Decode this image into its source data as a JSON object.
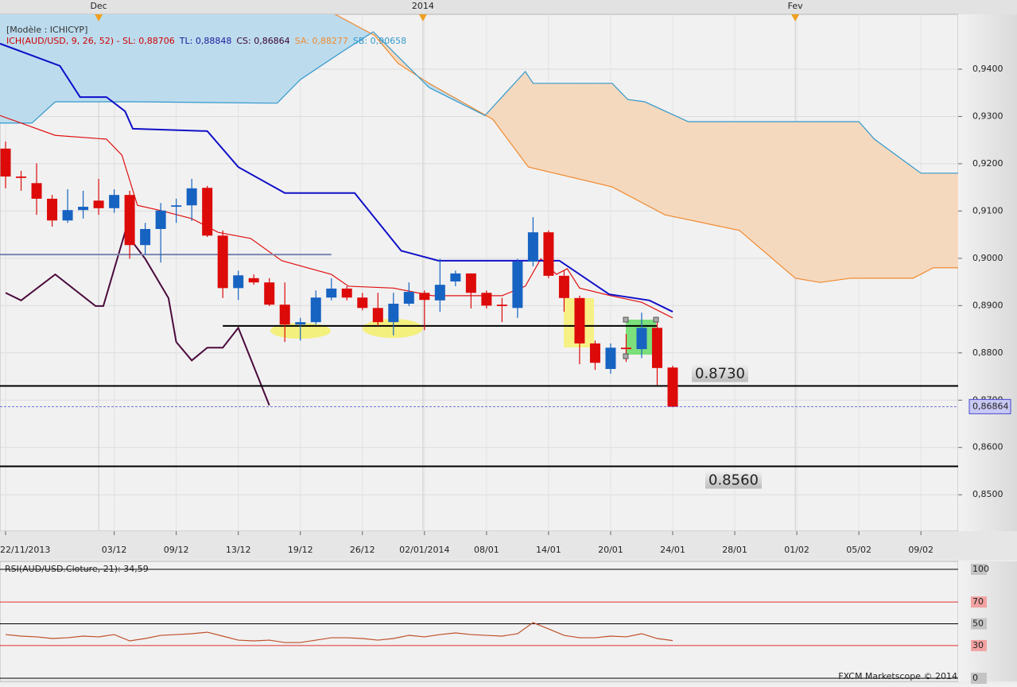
{
  "chart_data": [
    {
      "type": "candlestick",
      "legend_texts": [
        {
          "text": "[Modèle : ICHICYP]",
          "color": "#333333"
        },
        {
          "text": "ICH(AUD/USD, 9, 26, 52) -  SL: 0,88706",
          "color": "#d00000"
        },
        {
          "text": "TL: 0,88848",
          "color": "#1a1a9a"
        },
        {
          "text": "CS: 0,86864",
          "color": "#3a0030"
        },
        {
          "text": "SA: 0,88277",
          "color": "#f08a30"
        },
        {
          "text": "SB: 0,90658",
          "color": "#3399cc"
        }
      ],
      "top_labels": [
        {
          "value": 6,
          "label": "Dec"
        },
        {
          "value": 26.9,
          "label": "2014"
        },
        {
          "value": 50.9,
          "label": "Fev"
        }
      ],
      "x": [
        0,
        1,
        2,
        3,
        4,
        5,
        6,
        7,
        8,
        9,
        10,
        11,
        12,
        13,
        14,
        15,
        16,
        17,
        18,
        19,
        20,
        21,
        22,
        23,
        24,
        25,
        26,
        27,
        28,
        29,
        30,
        31,
        32,
        33,
        34,
        35,
        36,
        37,
        38,
        39,
        40,
        41,
        42,
        43
      ],
      "open": [
        0.9232,
        0.9173,
        0.9159,
        0.9126,
        0.908,
        0.9102,
        0.9122,
        0.9106,
        0.9134,
        0.9028,
        0.9062,
        0.9109,
        0.9112,
        0.9149,
        0.9048,
        0.8937,
        0.8958,
        0.8949,
        0.8902,
        0.886,
        0.8865,
        0.8917,
        0.8936,
        0.8917,
        0.8895,
        0.8865,
        0.8904,
        0.8927,
        0.8911,
        0.8951,
        0.8968,
        0.8927,
        0.8902,
        0.8895,
        0.8993,
        0.9055,
        0.8963,
        0.8916,
        0.882,
        0.8766,
        0.8811,
        0.8808,
        0.8853,
        0.8769
      ],
      "high": [
        0.9247,
        0.9185,
        0.9201,
        0.9134,
        0.9146,
        0.9143,
        0.9168,
        0.9146,
        0.9143,
        0.9075,
        0.9117,
        0.9126,
        0.9168,
        0.9153,
        0.9059,
        0.8974,
        0.8966,
        0.8958,
        0.8949,
        0.8874,
        0.8932,
        0.8958,
        0.8941,
        0.8927,
        0.8927,
        0.8927,
        0.8949,
        0.8932,
        0.8999,
        0.8974,
        0.8968,
        0.8932,
        0.8916,
        0.8999,
        0.9087,
        0.9059,
        0.8974,
        0.8921,
        0.8826,
        0.882,
        0.884,
        0.8885,
        0.8865,
        0.8773
      ],
      "low": [
        0.9148,
        0.9143,
        0.9092,
        0.9067,
        0.9075,
        0.9084,
        0.9092,
        0.9096,
        0.8999,
        0.9008,
        0.8991,
        0.9075,
        0.9079,
        0.9045,
        0.8916,
        0.8912,
        0.8944,
        0.8899,
        0.8823,
        0.8826,
        0.886,
        0.8911,
        0.8911,
        0.889,
        0.8857,
        0.8837,
        0.8899,
        0.8848,
        0.8887,
        0.8941,
        0.8894,
        0.8894,
        0.8865,
        0.8874,
        0.8983,
        0.8958,
        0.8887,
        0.8776,
        0.8764,
        0.8756,
        0.8781,
        0.8789,
        0.8732,
        0.8685
      ],
      "close": [
        0.9173,
        0.917,
        0.9126,
        0.908,
        0.9102,
        0.9109,
        0.9106,
        0.9134,
        0.9028,
        0.9062,
        0.9101,
        0.9112,
        0.9148,
        0.9048,
        0.8937,
        0.8964,
        0.8949,
        0.8902,
        0.886,
        0.8865,
        0.8917,
        0.8936,
        0.8917,
        0.8895,
        0.8865,
        0.8904,
        0.8929,
        0.8912,
        0.8944,
        0.8968,
        0.8927,
        0.89,
        0.8899,
        0.8993,
        0.9055,
        0.8963,
        0.8916,
        0.882,
        0.8779,
        0.8811,
        0.8808,
        0.8853,
        0.8768,
        0.8686
      ],
      "up_color": "#1763c2",
      "down_color": "#dd0a0a",
      "series": [
        {
          "color": "#e01010",
          "x": [
            -0.36,
            3.2,
            6.5,
            7.5,
            8.5,
            10,
            12,
            13.7,
            15.8,
            17.8,
            21,
            22.1,
            25,
            27.5,
            32,
            33.5,
            34.5,
            35.5,
            36.2,
            37,
            39,
            41,
            43
          ],
          "values": [
            0.9302,
            0.926,
            0.9252,
            0.9218,
            0.9112,
            0.9101,
            0.9084,
            0.9055,
            0.9042,
            0.8995,
            0.8966,
            0.8941,
            0.8937,
            0.8921,
            0.8921,
            0.8941,
            0.8999,
            0.8966,
            0.8978,
            0.8937,
            0.8921,
            0.8907,
            0.8874
          ]
        },
        {
          "color": "#1010c8",
          "x": [
            -0.36,
            3.5,
            4.8,
            6.5,
            7.7,
            8.2,
            13,
            15,
            18,
            22.5,
            25.5,
            27.9,
            35.7,
            38.9,
            41.5,
            43
          ],
          "values": [
            0.9454,
            0.9407,
            0.9341,
            0.9341,
            0.9311,
            0.9274,
            0.9269,
            0.9193,
            0.9138,
            0.9138,
            0.9016,
            0.8995,
            0.8995,
            0.8924,
            0.8911,
            0.8887
          ]
        },
        {
          "color": "#4a0a3c",
          "x": [
            0,
            1,
            3.2,
            5.8,
            6.3,
            7.7,
            9,
            10.5,
            11,
            12,
            13,
            14,
            15,
            17
          ],
          "values": [
            0.8927,
            0.8911,
            0.8966,
            0.8899,
            0.8899,
            0.9055,
            0.8999,
            0.8916,
            0.8823,
            0.8784,
            0.8811,
            0.8811,
            0.8853,
            0.8689
          ]
        },
        {
          "color": "#f08a30",
          "x": [
            -0.36,
            20,
            23.8,
            25.3,
            27.3,
            31.4,
            33.7,
            39.1,
            42.5,
            47.3,
            50.9,
            52.5,
            54.5,
            58.5,
            59.8,
            61.4
          ],
          "values": [
            0.9538,
            0.9538,
            0.9471,
            0.9412,
            0.937,
            0.9294,
            0.9193,
            0.9151,
            0.9092,
            0.9059,
            0.8958,
            0.8949,
            0.8958,
            0.8958,
            0.898,
            0.898
          ]
        },
        {
          "color": "#3399cc",
          "x": [
            -0.36,
            1.7,
            3.2,
            8.5,
            17.5,
            19,
            21.7,
            23.7,
            27.3,
            30.9,
            33.5,
            34,
            39.1,
            40.1,
            41.2,
            44,
            55,
            56,
            59,
            61.4
          ],
          "values": [
            0.9286,
            0.9286,
            0.9331,
            0.9331,
            0.9328,
            0.9378,
            0.9437,
            0.9479,
            0.9361,
            0.9302,
            0.9395,
            0.937,
            0.937,
            0.9336,
            0.9331,
            0.9289,
            0.9289,
            0.9252,
            0.918,
            0.918
          ]
        }
      ],
      "cloud_colors": [
        "#bcdcee",
        "#f5d9bf"
      ],
      "levels": [
        {
          "value": 0.873,
          "label": "0.8730",
          "color": "#000000"
        },
        {
          "value": 0.856,
          "label": "0.8560",
          "color": "#000000"
        },
        {
          "value": 0.8857,
          "x": [
            14,
            42
          ],
          "color": "#000000"
        },
        {
          "value": 0.9008,
          "x": [
            -0.36,
            21
          ],
          "color": "#7a86b0"
        }
      ],
      "price_marker": {
        "value": 0.86864,
        "label": "0,86864",
        "color": "#4848d0"
      },
      "xlim": [
        -0.36,
        61.4
      ],
      "ylim": [
        0.8423,
        0.9516
      ],
      "xticks": [
        {
          "value": 0,
          "label": "22/11/2013"
        },
        {
          "value": 7,
          "label": "03/12"
        },
        {
          "value": 11,
          "label": "09/12"
        },
        {
          "value": 15,
          "label": "13/12"
        },
        {
          "value": 19,
          "label": "19/12"
        },
        {
          "value": 23,
          "label": "26/12"
        },
        {
          "value": 27,
          "label": "02/01/2014"
        },
        {
          "value": 31,
          "label": "08/01"
        },
        {
          "value": 35,
          "label": "14/01"
        },
        {
          "value": 39,
          "label": "20/01"
        },
        {
          "value": 43,
          "label": "24/01"
        },
        {
          "value": 47,
          "label": "28/01"
        },
        {
          "value": 51,
          "label": "01/02"
        },
        {
          "value": 55,
          "label": "05/02"
        },
        {
          "value": 59,
          "label": "09/02"
        }
      ],
      "yticks": [
        {
          "value": 0.85,
          "label": "0,8500"
        },
        {
          "value": 0.86,
          "label": "0,8600"
        },
        {
          "value": 0.87,
          "label": "0,8700"
        },
        {
          "value": 0.88,
          "label": "0,8800"
        },
        {
          "value": 0.89,
          "label": "0,8900"
        },
        {
          "value": 0.9,
          "label": "0,9000"
        },
        {
          "value": 0.91,
          "label": "0,9100"
        },
        {
          "value": 0.92,
          "label": "0,9200"
        },
        {
          "value": 0.93,
          "label": "0,9300"
        },
        {
          "value": 0.94,
          "label": "0,9400"
        }
      ],
      "grid": true
    },
    {
      "type": "line",
      "title": "RSI(AUD/USD.Cloture, 21): 34,59",
      "x": [
        0,
        1,
        2,
        3,
        4,
        5,
        6,
        7,
        8,
        9,
        10,
        11,
        12,
        13,
        14,
        15,
        16,
        17,
        18,
        19,
        20,
        21,
        22,
        23,
        24,
        25,
        26,
        27,
        28,
        29,
        30,
        31,
        32,
        33,
        34,
        35,
        36,
        37,
        38,
        39,
        40,
        41,
        42,
        43
      ],
      "values": [
        40.1,
        38.7,
        38.0,
        36.5,
        37.2,
        38.7,
        38.0,
        40.1,
        34.3,
        36.5,
        39.4,
        40.1,
        40.9,
        42.3,
        38.7,
        35.0,
        34.3,
        35.0,
        32.8,
        32.8,
        35.0,
        37.2,
        37.2,
        36.5,
        35.0,
        36.5,
        39.4,
        38.0,
        40.1,
        41.6,
        40.1,
        39.4,
        38.7,
        40.9,
        51.1,
        45.3,
        39.4,
        37.2,
        37.2,
        38.7,
        38.0,
        40.9,
        36.5,
        34.6
      ],
      "color": "#c0502a",
      "xlim": [
        -0.36,
        61.4
      ],
      "ylim": [
        -2.9,
        107.3
      ],
      "yticks": [
        0,
        30,
        50,
        70,
        100
      ],
      "tick_colors": [
        "#000000",
        "#e03030",
        "#000000",
        "#e03030",
        "#000000"
      ],
      "footer": "FXCM Marketscope © 2014"
    }
  ]
}
